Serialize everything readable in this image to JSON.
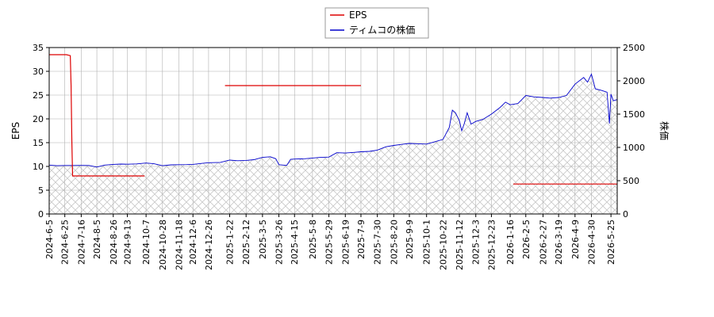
{
  "chart_data": {
    "type": "line",
    "legend": {
      "placement": "top-center",
      "entries": [
        "EPS",
        "ティムコの株価"
      ]
    },
    "colors": {
      "eps": "#dd0000",
      "price": "#0000cc",
      "grid": "#b0b0b0",
      "hatch": "#c8c8c8"
    },
    "y_left": {
      "label": "EPS",
      "range": [
        0,
        35
      ],
      "ticks": [
        "0",
        "5",
        "10",
        "15",
        "20",
        "25",
        "30",
        "35"
      ]
    },
    "y_right": {
      "label": "株価",
      "range": [
        0,
        2500
      ],
      "ticks": [
        "0",
        "500",
        "1000",
        "1500",
        "2000",
        "2500"
      ]
    },
    "x_range": [
      "2024-06-05",
      "2026-06-02"
    ],
    "x_ticks": [
      "2024-6-5",
      "2024-6-25",
      "2024-7-16",
      "2024-8-5",
      "2024-8-26",
      "2024-9-13",
      "2024-10-7",
      "2024-10-28",
      "2024-11-18",
      "2024-12-6",
      "2024-12-26",
      "2025-1-22",
      "2025-2-12",
      "2025-3-5",
      "2025-3-26",
      "2025-4-15",
      "2025-5-8",
      "2025-5-29",
      "2025-6-19",
      "2025-7-9",
      "2025-7-30",
      "2025-8-20",
      "2025-9-9",
      "2025-10-1",
      "2025-10-22",
      "2025-11-12",
      "2025-12-3",
      "2025-12-23",
      "2026-1-16",
      "2026-2-5",
      "2026-2-27",
      "2026-3-19",
      "2026-4-9",
      "2026-4-30",
      "2026-5-25"
    ],
    "grid": true,
    "eps_series": {
      "name": "EPS",
      "segments": [
        {
          "points": [
            [
              "2024-06-05",
              33.5
            ],
            [
              "2024-06-27",
              33.5
            ],
            [
              "2024-07-02",
              33.3
            ],
            [
              "2024-07-03",
              27.0
            ],
            [
              "2024-07-04",
              15.0
            ],
            [
              "2024-07-05",
              8.0
            ],
            [
              "2024-10-05",
              8.0
            ]
          ]
        },
        {
          "points": [
            [
              "2025-01-16",
              27.0
            ],
            [
              "2025-07-09",
              27.0
            ]
          ]
        },
        {
          "points": [
            [
              "2026-01-20",
              6.3
            ],
            [
              "2026-06-02",
              6.3
            ]
          ]
        }
      ]
    },
    "price_series": {
      "name": "ティムコの株価",
      "points": [
        [
          "2024-06-05",
          735
        ],
        [
          "2024-06-15",
          725
        ],
        [
          "2024-06-25",
          728
        ],
        [
          "2024-07-05",
          728
        ],
        [
          "2024-07-16",
          730
        ],
        [
          "2024-07-26",
          728
        ],
        [
          "2024-08-05",
          705
        ],
        [
          "2024-08-15",
          735
        ],
        [
          "2024-08-26",
          745
        ],
        [
          "2024-09-05",
          750
        ],
        [
          "2024-09-13",
          748
        ],
        [
          "2024-09-25",
          752
        ],
        [
          "2024-10-07",
          765
        ],
        [
          "2024-10-17",
          755
        ],
        [
          "2024-10-28",
          725
        ],
        [
          "2024-11-08",
          738
        ],
        [
          "2024-11-18",
          740
        ],
        [
          "2024-11-28",
          742
        ],
        [
          "2024-12-06",
          745
        ],
        [
          "2024-12-16",
          758
        ],
        [
          "2024-12-26",
          770
        ],
        [
          "2025-01-10",
          775
        ],
        [
          "2025-01-22",
          810
        ],
        [
          "2025-02-01",
          800
        ],
        [
          "2025-02-12",
          805
        ],
        [
          "2025-02-22",
          815
        ],
        [
          "2025-03-05",
          850
        ],
        [
          "2025-03-15",
          860
        ],
        [
          "2025-03-22",
          830
        ],
        [
          "2025-03-26",
          740
        ],
        [
          "2025-04-05",
          730
        ],
        [
          "2025-04-10",
          820
        ],
        [
          "2025-04-15",
          825
        ],
        [
          "2025-04-28",
          830
        ],
        [
          "2025-05-08",
          840
        ],
        [
          "2025-05-18",
          850
        ],
        [
          "2025-05-29",
          855
        ],
        [
          "2025-06-08",
          920
        ],
        [
          "2025-06-19",
          915
        ],
        [
          "2025-06-30",
          925
        ],
        [
          "2025-07-09",
          935
        ],
        [
          "2025-07-20",
          940
        ],
        [
          "2025-07-30",
          960
        ],
        [
          "2025-08-10",
          1010
        ],
        [
          "2025-08-20",
          1030
        ],
        [
          "2025-08-30",
          1045
        ],
        [
          "2025-09-09",
          1060
        ],
        [
          "2025-09-20",
          1055
        ],
        [
          "2025-10-01",
          1050
        ],
        [
          "2025-10-10",
          1080
        ],
        [
          "2025-10-22",
          1120
        ],
        [
          "2025-10-30",
          1300
        ],
        [
          "2025-11-03",
          1560
        ],
        [
          "2025-11-07",
          1520
        ],
        [
          "2025-11-12",
          1400
        ],
        [
          "2025-11-15",
          1250
        ],
        [
          "2025-11-18",
          1350
        ],
        [
          "2025-11-22",
          1520
        ],
        [
          "2025-11-27",
          1350
        ],
        [
          "2025-12-03",
          1390
        ],
        [
          "2025-12-12",
          1420
        ],
        [
          "2025-12-23",
          1500
        ],
        [
          "2026-01-03",
          1600
        ],
        [
          "2026-01-10",
          1680
        ],
        [
          "2026-01-16",
          1640
        ],
        [
          "2026-01-26",
          1660
        ],
        [
          "2026-02-05",
          1780
        ],
        [
          "2026-02-15",
          1760
        ],
        [
          "2026-02-27",
          1750
        ],
        [
          "2026-03-08",
          1740
        ],
        [
          "2026-03-19",
          1750
        ],
        [
          "2026-03-29",
          1780
        ],
        [
          "2026-04-09",
          1950
        ],
        [
          "2026-04-20",
          2050
        ],
        [
          "2026-04-25",
          1980
        ],
        [
          "2026-04-30",
          2100
        ],
        [
          "2026-05-05",
          1880
        ],
        [
          "2026-05-12",
          1860
        ],
        [
          "2026-05-20",
          1830
        ],
        [
          "2026-05-23",
          1360
        ],
        [
          "2026-05-25",
          1800
        ],
        [
          "2026-05-28",
          1700
        ],
        [
          "2026-06-02",
          1720
        ]
      ]
    }
  }
}
